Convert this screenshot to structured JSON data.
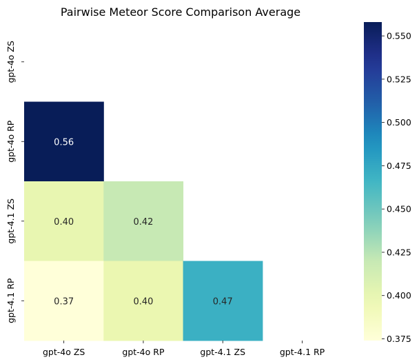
{
  "chart_data": {
    "type": "heatmap",
    "title": "Pairwise Meteor Score Comparison Average",
    "xlabel": "",
    "ylabel": "",
    "x_labels": [
      "gpt-4o ZS",
      "gpt-4o RP",
      "gpt-4.1 ZS",
      "gpt-4.1 RP"
    ],
    "y_labels": [
      "gpt-4o ZS",
      "gpt-4o RP",
      "gpt-4.1 ZS",
      "gpt-4.1 RP"
    ],
    "mask": "upper-triangle-including-diagonal",
    "cells": [
      {
        "row": 1,
        "col": 0,
        "value": 0.558,
        "label": "0.56"
      },
      {
        "row": 2,
        "col": 0,
        "value": 0.4,
        "label": "0.40"
      },
      {
        "row": 2,
        "col": 1,
        "value": 0.42,
        "label": "0.42"
      },
      {
        "row": 3,
        "col": 0,
        "value": 0.374,
        "label": "0.37"
      },
      {
        "row": 3,
        "col": 1,
        "value": 0.398,
        "label": "0.40"
      },
      {
        "row": 3,
        "col": 2,
        "value": 0.47,
        "label": "0.47"
      }
    ],
    "colorbar": {
      "colormap": "YlGnBu",
      "vmin": 0.374,
      "vmax": 0.558,
      "ticks": [
        0.375,
        0.4,
        0.425,
        0.45,
        0.475,
        0.5,
        0.525,
        0.55
      ],
      "tick_labels": [
        "0.375",
        "0.400",
        "0.425",
        "0.450",
        "0.475",
        "0.500",
        "0.525",
        "0.550"
      ]
    },
    "grid": false,
    "legend": "colorbar-right"
  }
}
